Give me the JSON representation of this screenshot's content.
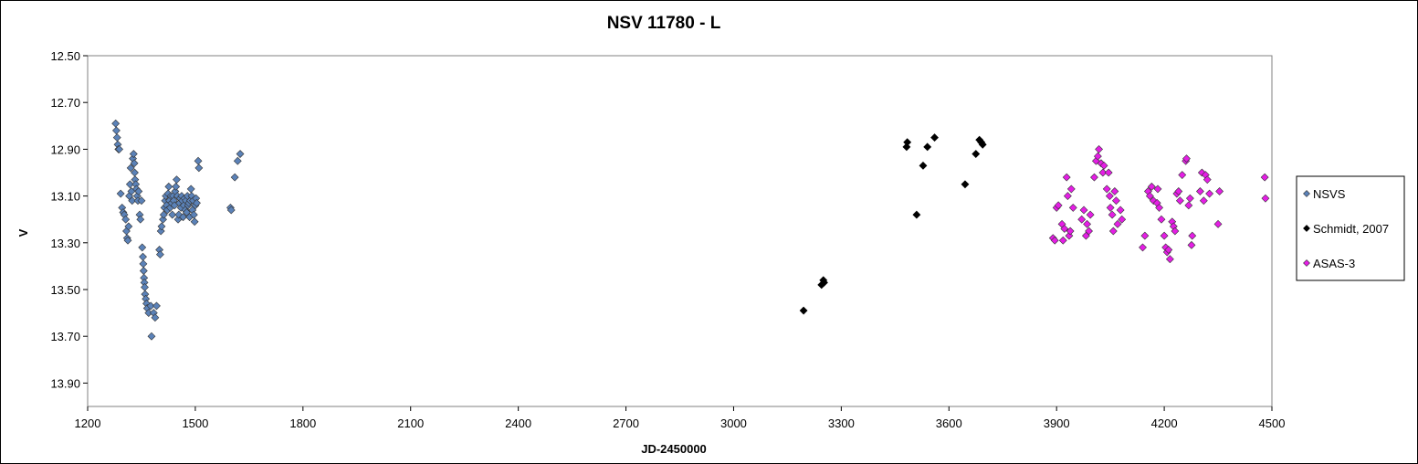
{
  "chart_data": {
    "type": "scatter",
    "title": "NSV 11780 - L",
    "xlabel": "JD-2450000",
    "ylabel": "V",
    "xlim": [
      1200,
      4500
    ],
    "ylim": [
      12.5,
      14.0
    ],
    "y_inverted": true,
    "x_ticks": [
      1200,
      1500,
      1800,
      2100,
      2400,
      2700,
      3000,
      3300,
      3600,
      3900,
      4200,
      4500
    ],
    "y_ticks": [
      "12.50",
      "12.70",
      "12.90",
      "13.10",
      "13.30",
      "13.50",
      "13.70",
      "13.90"
    ],
    "grid": false,
    "legend_position": "right",
    "series": [
      {
        "name": "NSVS",
        "color": "#5b82b8",
        "marker": "diamond",
        "points": [
          [
            1278,
            12.79
          ],
          [
            1280,
            12.82
          ],
          [
            1282,
            12.85
          ],
          [
            1284,
            12.88
          ],
          [
            1286,
            12.9
          ],
          [
            1288,
            12.9
          ],
          [
            1292,
            13.09
          ],
          [
            1296,
            13.15
          ],
          [
            1299,
            13.17
          ],
          [
            1302,
            13.18
          ],
          [
            1306,
            13.2
          ],
          [
            1308,
            13.25
          ],
          [
            1310,
            13.28
          ],
          [
            1312,
            13.29
          ],
          [
            1314,
            13.23
          ],
          [
            1316,
            13.1
          ],
          [
            1318,
            13.05
          ],
          [
            1320,
            12.98
          ],
          [
            1322,
            13.08
          ],
          [
            1324,
            13.12
          ],
          [
            1326,
            12.94
          ],
          [
            1328,
            12.92
          ],
          [
            1330,
            12.96
          ],
          [
            1331,
            13.0
          ],
          [
            1332,
            13.03
          ],
          [
            1334,
            13.05
          ],
          [
            1336,
            13.07
          ],
          [
            1338,
            13.1
          ],
          [
            1340,
            13.12
          ],
          [
            1342,
            13.08
          ],
          [
            1345,
            13.18
          ],
          [
            1347,
            13.2
          ],
          [
            1350,
            13.12
          ],
          [
            1352,
            13.32
          ],
          [
            1354,
            13.36
          ],
          [
            1355,
            13.39
          ],
          [
            1356,
            13.42
          ],
          [
            1357,
            13.45
          ],
          [
            1358,
            13.47
          ],
          [
            1359,
            13.49
          ],
          [
            1360,
            13.52
          ],
          [
            1362,
            13.54
          ],
          [
            1364,
            13.56
          ],
          [
            1366,
            13.58
          ],
          [
            1370,
            13.6
          ],
          [
            1376,
            13.57
          ],
          [
            1378,
            13.7
          ],
          [
            1384,
            13.6
          ],
          [
            1388,
            13.62
          ],
          [
            1392,
            13.57
          ],
          [
            1400,
            13.33
          ],
          [
            1402,
            13.35
          ],
          [
            1404,
            13.25
          ],
          [
            1406,
            13.23
          ],
          [
            1410,
            13.2
          ],
          [
            1412,
            13.18
          ],
          [
            1414,
            13.15
          ],
          [
            1416,
            13.12
          ],
          [
            1418,
            13.1
          ],
          [
            1420,
            13.14
          ],
          [
            1422,
            13.16
          ],
          [
            1424,
            13.09
          ],
          [
            1426,
            13.06
          ],
          [
            1428,
            13.12
          ],
          [
            1430,
            13.15
          ],
          [
            1432,
            13.1
          ],
          [
            1434,
            13.13
          ],
          [
            1436,
            13.18
          ],
          [
            1438,
            13.1
          ],
          [
            1440,
            13.12
          ],
          [
            1442,
            13.14
          ],
          [
            1444,
            13.08
          ],
          [
            1446,
            13.06
          ],
          [
            1448,
            13.03
          ],
          [
            1450,
            13.1
          ],
          [
            1452,
            13.2
          ],
          [
            1454,
            13.18
          ],
          [
            1456,
            13.13
          ],
          [
            1458,
            13.11
          ],
          [
            1460,
            13.15
          ],
          [
            1462,
            13.1
          ],
          [
            1464,
            13.12
          ],
          [
            1466,
            13.19
          ],
          [
            1468,
            13.14
          ],
          [
            1470,
            13.11
          ],
          [
            1472,
            13.16
          ],
          [
            1474,
            13.12
          ],
          [
            1476,
            13.17
          ],
          [
            1478,
            13.1
          ],
          [
            1480,
            13.14
          ],
          [
            1482,
            13.13
          ],
          [
            1484,
            13.19
          ],
          [
            1486,
            13.12
          ],
          [
            1488,
            13.07
          ],
          [
            1490,
            13.1
          ],
          [
            1492,
            13.16
          ],
          [
            1494,
            13.12
          ],
          [
            1496,
            13.18
          ],
          [
            1498,
            13.21
          ],
          [
            1500,
            13.14
          ],
          [
            1502,
            13.11
          ],
          [
            1504,
            13.13
          ],
          [
            1508,
            12.95
          ],
          [
            1510,
            12.98
          ],
          [
            1598,
            13.15
          ],
          [
            1600,
            13.16
          ],
          [
            1610,
            13.02
          ],
          [
            1618,
            12.95
          ],
          [
            1625,
            12.92
          ]
        ]
      },
      {
        "name": "Schmidt, 2007",
        "color": "#000000",
        "marker": "diamond",
        "points": [
          [
            3195,
            13.59
          ],
          [
            3245,
            13.48
          ],
          [
            3250,
            13.46
          ],
          [
            3252,
            13.47
          ],
          [
            3482,
            12.89
          ],
          [
            3484,
            12.87
          ],
          [
            3510,
            13.18
          ],
          [
            3528,
            12.97
          ],
          [
            3540,
            12.89
          ],
          [
            3560,
            12.85
          ],
          [
            3645,
            13.05
          ],
          [
            3675,
            12.92
          ],
          [
            3685,
            12.86
          ],
          [
            3690,
            12.87
          ],
          [
            3694,
            12.88
          ]
        ]
      },
      {
        "name": "ASAS-3",
        "color": "#e51ee5",
        "marker": "diamond",
        "points": [
          [
            3890,
            13.28
          ],
          [
            3895,
            13.29
          ],
          [
            3900,
            13.15
          ],
          [
            3905,
            13.14
          ],
          [
            3915,
            13.22
          ],
          [
            3918,
            13.29
          ],
          [
            3922,
            13.24
          ],
          [
            3928,
            13.02
          ],
          [
            3931,
            13.1
          ],
          [
            3935,
            13.27
          ],
          [
            3938,
            13.25
          ],
          [
            3941,
            13.07
          ],
          [
            3946,
            13.15
          ],
          [
            3970,
            13.2
          ],
          [
            3976,
            13.16
          ],
          [
            3982,
            13.27
          ],
          [
            3985,
            13.22
          ],
          [
            3990,
            13.25
          ],
          [
            3994,
            13.18
          ],
          [
            4005,
            13.02
          ],
          [
            4010,
            12.95
          ],
          [
            4015,
            12.93
          ],
          [
            4018,
            12.9
          ],
          [
            4024,
            12.96
          ],
          [
            4029,
            13.0
          ],
          [
            4032,
            12.97
          ],
          [
            4040,
            13.07
          ],
          [
            4045,
            13.0
          ],
          [
            4048,
            13.1
          ],
          [
            4050,
            13.15
          ],
          [
            4055,
            13.18
          ],
          [
            4058,
            13.25
          ],
          [
            4062,
            13.08
          ],
          [
            4066,
            13.12
          ],
          [
            4070,
            13.22
          ],
          [
            4078,
            13.16
          ],
          [
            4082,
            13.2
          ],
          [
            4140,
            13.32
          ],
          [
            4146,
            13.27
          ],
          [
            4155,
            13.08
          ],
          [
            4160,
            13.1
          ],
          [
            4165,
            13.06
          ],
          [
            4170,
            13.12
          ],
          [
            4180,
            13.13
          ],
          [
            4182,
            13.07
          ],
          [
            4186,
            13.15
          ],
          [
            4192,
            13.2
          ],
          [
            4200,
            13.27
          ],
          [
            4204,
            13.32
          ],
          [
            4208,
            13.34
          ],
          [
            4212,
            13.33
          ],
          [
            4216,
            13.37
          ],
          [
            4222,
            13.21
          ],
          [
            4226,
            13.23
          ],
          [
            4230,
            13.25
          ],
          [
            4235,
            13.09
          ],
          [
            4240,
            13.08
          ],
          [
            4244,
            13.12
          ],
          [
            4250,
            13.01
          ],
          [
            4260,
            12.95
          ],
          [
            4262,
            12.94
          ],
          [
            4268,
            13.14
          ],
          [
            4272,
            13.11
          ],
          [
            4276,
            13.31
          ],
          [
            4278,
            13.27
          ],
          [
            4300,
            13.08
          ],
          [
            4305,
            13.0
          ],
          [
            4310,
            13.12
          ],
          [
            4315,
            13.01
          ],
          [
            4320,
            13.03
          ],
          [
            4326,
            13.09
          ],
          [
            4350,
            13.22
          ],
          [
            4354,
            13.08
          ],
          [
            4480,
            13.02
          ],
          [
            4482,
            13.11
          ]
        ]
      }
    ]
  }
}
